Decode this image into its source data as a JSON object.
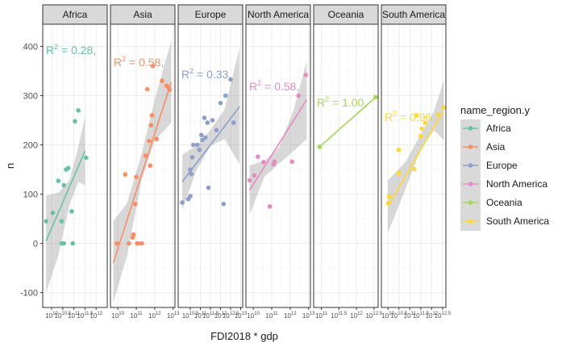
{
  "chart_data": {
    "type": "scatter",
    "xlabel": "FDI2018 * gdp",
    "ylabel": "n",
    "ylim": [
      -130,
      445
    ],
    "yticks": [
      -100,
      0,
      100,
      200,
      300,
      400
    ],
    "grid": true,
    "smooth": "linear regression with confidence band",
    "legend": {
      "title": "name_region.y",
      "placement": "right",
      "entries": [
        "Africa",
        "Asia",
        "Europe",
        "North America",
        "Oceania",
        "South America"
      ]
    },
    "panels": [
      {
        "name": "Africa",
        "color": "#66c2a5",
        "r2_label": "= 0.28,",
        "xlim": [
          9.6,
          12.5
        ],
        "xticks": [
          {
            "base": "10",
            "exp": "10"
          },
          {
            "base": "10",
            "exp": "10.5"
          },
          {
            "base": "10",
            "exp": "11"
          },
          {
            "base": "10",
            "exp": "11.5"
          },
          {
            "base": "10",
            "exp": "12"
          }
        ],
        "points": [
          [
            9.75,
            45
          ],
          [
            10.05,
            62
          ],
          [
            10.3,
            127
          ],
          [
            10.45,
            45
          ],
          [
            10.45,
            0
          ],
          [
            10.55,
            0
          ],
          [
            10.55,
            118
          ],
          [
            10.65,
            150
          ],
          [
            10.75,
            153
          ],
          [
            10.9,
            65
          ],
          [
            10.95,
            0
          ],
          [
            11.05,
            248
          ],
          [
            11.2,
            270
          ],
          [
            11.55,
            174
          ]
        ],
        "fit": [
          [
            9.75,
            5
          ],
          [
            11.5,
            188
          ]
        ],
        "band_upper": [
          [
            9.75,
            97
          ],
          [
            10.3,
            103
          ],
          [
            10.8,
            128
          ],
          [
            11.2,
            195
          ],
          [
            11.5,
            258
          ]
        ],
        "band_lower": [
          [
            9.75,
            -100
          ],
          [
            10.3,
            -25
          ],
          [
            10.8,
            78
          ],
          [
            11.2,
            125
          ],
          [
            11.5,
            118
          ]
        ]
      },
      {
        "name": "Asia",
        "color": "#fc8d62",
        "r2_label": "= 0.58,",
        "xlim": [
          9.6,
          13.1
        ],
        "xticks": [
          {
            "base": "10",
            "exp": "10"
          },
          {
            "base": "10",
            "exp": "11"
          },
          {
            "base": "10",
            "exp": "12"
          },
          {
            "base": "10",
            "exp": "13"
          }
        ],
        "points": [
          [
            9.95,
            0
          ],
          [
            10.4,
            140
          ],
          [
            10.6,
            0
          ],
          [
            10.8,
            12
          ],
          [
            10.85,
            18
          ],
          [
            10.95,
            80
          ],
          [
            11.0,
            135
          ],
          [
            11.05,
            0
          ],
          [
            11.1,
            0
          ],
          [
            11.3,
            0
          ],
          [
            11.5,
            178
          ],
          [
            11.6,
            313
          ],
          [
            11.7,
            208
          ],
          [
            11.75,
            158
          ],
          [
            11.8,
            240
          ],
          [
            11.85,
            260
          ],
          [
            11.9,
            360
          ],
          [
            12.1,
            212
          ],
          [
            12.4,
            330
          ],
          [
            12.65,
            320
          ],
          [
            12.75,
            317
          ],
          [
            12.8,
            312
          ]
        ],
        "fit": [
          [
            9.75,
            -40
          ],
          [
            12.9,
            328
          ]
        ],
        "band_upper": [
          [
            9.75,
            45
          ],
          [
            10.5,
            82
          ],
          [
            11.3,
            183
          ],
          [
            12.0,
            292
          ],
          [
            12.9,
            412
          ]
        ],
        "band_lower": [
          [
            9.75,
            -120
          ],
          [
            10.5,
            -25
          ],
          [
            11.3,
            130
          ],
          [
            12.0,
            208
          ],
          [
            12.9,
            245
          ]
        ]
      },
      {
        "name": "Europe",
        "color": "#8da0cb",
        "r2_label": "= 0.33",
        "xlim": [
          9.9,
          13.1
        ],
        "xticks": [
          {
            "base": "10",
            "exp": "10.5"
          },
          {
            "base": "10",
            "exp": "11"
          },
          {
            "base": "10",
            "exp": "11.5"
          },
          {
            "base": "10",
            "exp": "12"
          },
          {
            "base": "10",
            "exp": "12.5"
          },
          {
            "base": "10",
            "exp": "13"
          }
        ],
        "points": [
          [
            10.1,
            83
          ],
          [
            10.4,
            90
          ],
          [
            10.5,
            96
          ],
          [
            10.5,
            150
          ],
          [
            10.55,
            141
          ],
          [
            10.6,
            175
          ],
          [
            10.65,
            200
          ],
          [
            10.85,
            200
          ],
          [
            10.95,
            190
          ],
          [
            11.05,
            220
          ],
          [
            11.1,
            210
          ],
          [
            11.2,
            255
          ],
          [
            11.25,
            215
          ],
          [
            11.35,
            245
          ],
          [
            11.4,
            113
          ],
          [
            11.6,
            250
          ],
          [
            11.8,
            230
          ],
          [
            12.0,
            285
          ],
          [
            12.15,
            80
          ],
          [
            12.25,
            300
          ],
          [
            12.5,
            333
          ],
          [
            12.65,
            245
          ]
        ],
        "fit": [
          [
            10.1,
            125
          ],
          [
            12.95,
            278
          ]
        ],
        "band_upper": [
          [
            10.1,
            180
          ],
          [
            10.8,
            198
          ],
          [
            11.5,
            230
          ],
          [
            12.2,
            272
          ],
          [
            12.95,
            398
          ]
        ],
        "band_lower": [
          [
            10.1,
            68
          ],
          [
            10.8,
            148
          ],
          [
            11.5,
            198
          ],
          [
            12.2,
            212
          ],
          [
            12.95,
            160
          ]
        ]
      },
      {
        "name": "North America",
        "color": "#e78ac3",
        "r2_label": "= 0.58,",
        "xlim": [
          9.6,
          13.1
        ],
        "xticks": [
          {
            "base": "10",
            "exp": "10"
          },
          {
            "base": "10",
            "exp": "11"
          },
          {
            "base": "10",
            "exp": "12"
          },
          {
            "base": "10",
            "exp": "13"
          }
        ],
        "points": [
          [
            9.8,
            128
          ],
          [
            10.05,
            138
          ],
          [
            10.25,
            176
          ],
          [
            10.55,
            165
          ],
          [
            10.9,
            75
          ],
          [
            11.1,
            161
          ],
          [
            11.15,
            166
          ],
          [
            12.1,
            166
          ],
          [
            12.45,
            300
          ],
          [
            12.85,
            342
          ]
        ],
        "fit": [
          [
            9.8,
            108
          ],
          [
            12.9,
            292
          ]
        ],
        "band_upper": [
          [
            9.8,
            158
          ],
          [
            10.6,
            168
          ],
          [
            11.4,
            195
          ],
          [
            12.2,
            272
          ],
          [
            12.9,
            370
          ]
        ],
        "band_lower": [
          [
            9.8,
            58
          ],
          [
            10.6,
            135
          ],
          [
            11.4,
            162
          ],
          [
            12.2,
            188
          ],
          [
            12.9,
            212
          ]
        ]
      },
      {
        "name": "Oceania",
        "color": "#a6d854",
        "r2_label": "= 1.00,",
        "xlim": [
          10.78,
          12.62
        ],
        "xticks": [
          {
            "base": "10",
            "exp": "11"
          },
          {
            "base": "10",
            "exp": "11.5"
          },
          {
            "base": "10",
            "exp": "12"
          },
          {
            "base": "10",
            "exp": "12.5"
          }
        ],
        "points": [
          [
            10.95,
            196
          ],
          [
            12.55,
            297
          ]
        ],
        "fit": [
          [
            10.95,
            196
          ],
          [
            12.55,
            297
          ]
        ]
      },
      {
        "name": "South America",
        "color": "#ffd92f",
        "r2_label": "= 0.96,",
        "xlim": [
          9.7,
          12.65
        ],
        "xticks": [
          {
            "base": "10",
            "exp": "10"
          },
          {
            "base": "10",
            "exp": "10.5"
          },
          {
            "base": "10",
            "exp": "11"
          },
          {
            "base": "10",
            "exp": "11.5"
          },
          {
            "base": "10",
            "exp": "12"
          },
          {
            "base": "10",
            "exp": "12.5"
          }
        ],
        "points": [
          [
            10.0,
            82
          ],
          [
            10.05,
            95
          ],
          [
            10.5,
            190
          ],
          [
            10.5,
            143
          ],
          [
            11.2,
            151
          ],
          [
            11.3,
            260
          ],
          [
            11.5,
            218
          ],
          [
            11.55,
            233
          ],
          [
            11.7,
            245
          ],
          [
            12.3,
            262
          ],
          [
            12.55,
            276
          ]
        ],
        "fit": [
          [
            10.0,
            75
          ],
          [
            12.55,
            270
          ]
        ],
        "band_upper": [
          [
            10.0,
            128
          ],
          [
            10.8,
            165
          ],
          [
            11.5,
            222
          ],
          [
            12.1,
            268
          ],
          [
            12.55,
            330
          ]
        ],
        "band_lower": [
          [
            10.0,
            22
          ],
          [
            10.8,
            110
          ],
          [
            11.5,
            192
          ],
          [
            12.1,
            230
          ],
          [
            12.55,
            210
          ]
        ]
      }
    ]
  }
}
